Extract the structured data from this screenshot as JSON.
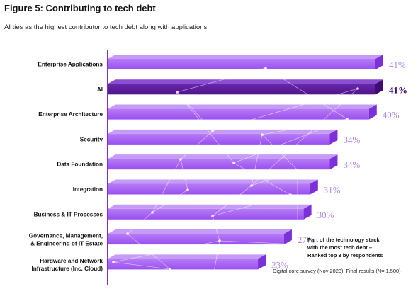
{
  "figure": {
    "title": "Figure 5: Contributing to tech debt",
    "subtitle": "AI ties as the highest contributor to tech debt along with applications.",
    "note_lines": [
      "Part of the technology stack",
      "with the most tech debt –",
      "Ranked top 3 by respondents"
    ],
    "source": "Digital core survey (Nov 2023): Final results (N= 1,500)"
  },
  "colors": {
    "bar_front": "#a259f0",
    "bar_top": "#c69bf7",
    "bar_side": "#7c31d8",
    "highlight_front": "#5b1a9c",
    "highlight_top": "#8a4fd1",
    "highlight_side": "#3f0c74",
    "value_label": "#b08be0",
    "highlight_label": "#3b0a68",
    "axis": "#7a2fd8"
  },
  "chart_data": {
    "type": "bar",
    "orientation": "horizontal",
    "categories": [
      "Enterprise Applications",
      "AI",
      "Enterprise Architecture",
      "Security",
      "Data Foundation",
      "Integration",
      "Business & IT Processes",
      "Governance, Management, & Engineering of IT Estate",
      "Hardware and Network Infrastructure (Inc. Cloud)"
    ],
    "category_lines": [
      [
        "Enterprise Applications"
      ],
      [
        "AI"
      ],
      [
        "Enterprise Architecture"
      ],
      [
        "Security"
      ],
      [
        "Data Foundation"
      ],
      [
        "Integration"
      ],
      [
        "Business & IT Processes"
      ],
      [
        "Governance, Management,",
        "& Engineering of IT Estate"
      ],
      [
        "Hardware and Network",
        "Infrastructure (Inc. Cloud)"
      ]
    ],
    "values": [
      41,
      41,
      40,
      34,
      34,
      31,
      30,
      27,
      23
    ],
    "value_labels": [
      "41%",
      "41%",
      "40%",
      "34%",
      "34%",
      "31%",
      "30%",
      "27%",
      "23%"
    ],
    "highlight_index": 1,
    "unit": "%",
    "xlim": [
      0,
      41
    ],
    "grid": false,
    "title": "Figure 5: Contributing to tech debt",
    "xlabel": "",
    "ylabel": ""
  }
}
